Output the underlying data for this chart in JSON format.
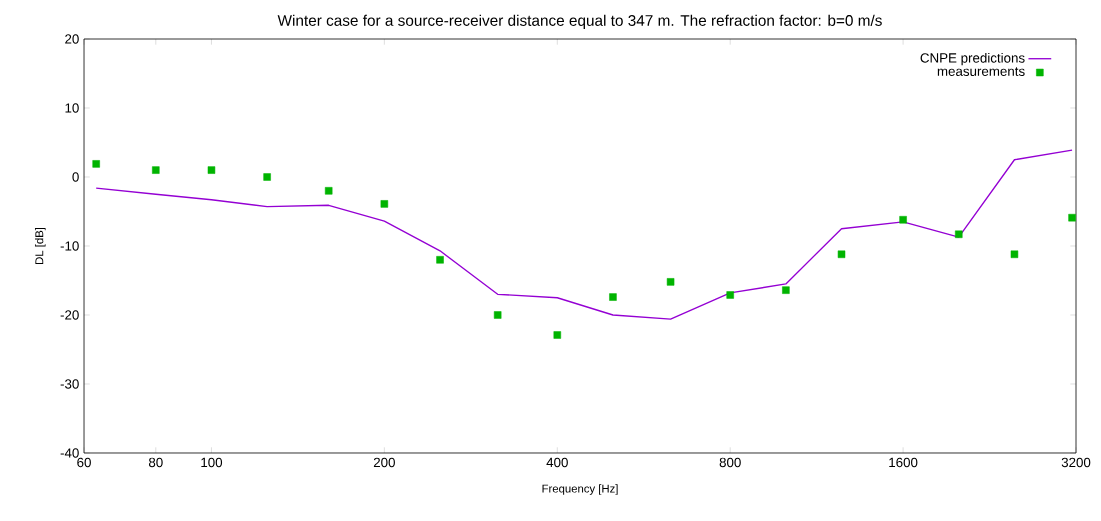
{
  "chart_data": {
    "type": "line",
    "title": "Winter case for a source-receiver distance equal to 347 m. The refraction factor: b=0 m/s",
    "xlabel": "Frequency [Hz]",
    "ylabel": "DL [dB]",
    "x": [
      63,
      80,
      100,
      125,
      160,
      200,
      250,
      315,
      400,
      500,
      630,
      800,
      1000,
      1250,
      1600,
      2000,
      2500,
      3150
    ],
    "series": [
      {
        "name": "CNPE predictions",
        "color": "#9400d3",
        "values": [
          -1.6,
          -2.5,
          -3.3,
          -4.3,
          -4.1,
          -6.4,
          -10.7,
          -17.0,
          -17.5,
          -20.0,
          -20.6,
          -16.8,
          -15.5,
          -7.5,
          -6.5,
          -8.7,
          2.5,
          3.9
        ]
      },
      {
        "name": "measurements",
        "type": "scatter",
        "color": "#00b400",
        "marker": "square",
        "values": [
          1.9,
          1.0,
          1.0,
          0.0,
          -2.0,
          -3.9,
          -12.0,
          -20.0,
          -22.9,
          -17.4,
          -15.2,
          -17.1,
          -16.4,
          -11.2,
          -6.2,
          -8.3,
          -11.2,
          -5.9
        ]
      }
    ],
    "log": "x",
    "xlim": [
      60,
      3200
    ],
    "xticks": [
      60,
      80,
      100,
      200,
      400,
      800,
      1600,
      3200
    ],
    "ylim": [
      -40,
      20
    ],
    "yticks": [
      -40,
      -30,
      -20,
      -10,
      0,
      10,
      20
    ],
    "legend": "top right",
    "grid": false
  }
}
